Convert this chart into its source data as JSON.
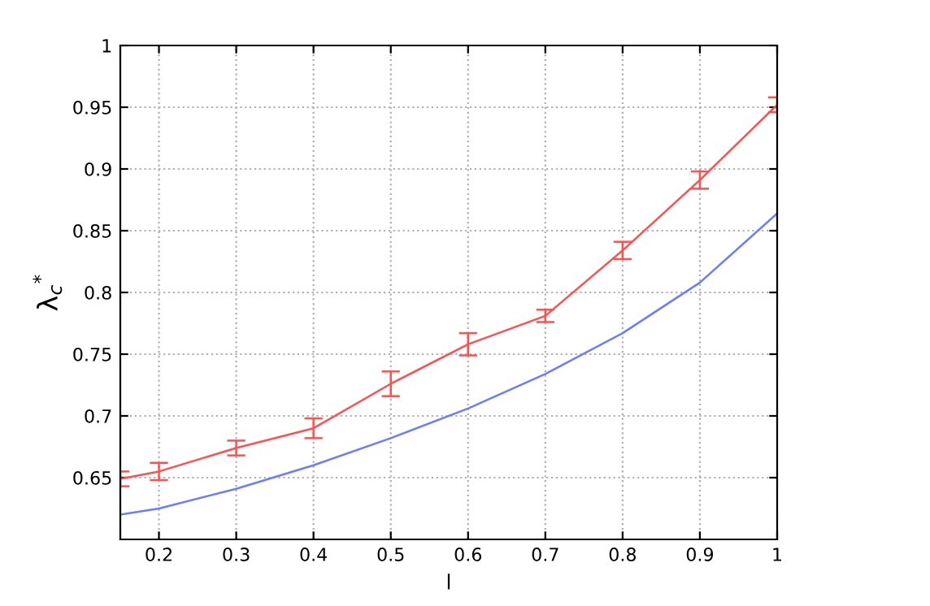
{
  "chart_data": {
    "type": "line",
    "xlabel": "l",
    "ylabel": "λ$_{c}$$^{*}$",
    "x": [
      0.15,
      0.2,
      0.3,
      0.4,
      0.5,
      0.6,
      0.7,
      0.8,
      0.9,
      1.0
    ],
    "series": [
      {
        "color": "#ff5050",
        "values": [
          0.649,
          0.655,
          0.674,
          0.69,
          0.726,
          0.758,
          0.781,
          0.834,
          0.891,
          0.952
        ],
        "errors": [
          0.006,
          0.007,
          0.006,
          0.008,
          0.01,
          0.009,
          0.005,
          0.007,
          0.007,
          0.006
        ]
      },
      {
        "color": "#6a7cff",
        "values": [
          0.62,
          0.625,
          0.641,
          0.66,
          0.682,
          0.706,
          0.734,
          0.767,
          0.808,
          0.864
        ]
      }
    ],
    "xlim": [
      0.15,
      1
    ],
    "ylim": [
      0.6,
      1
    ],
    "xticks": [
      0.2,
      0.3,
      0.4,
      0.5,
      0.6,
      0.7,
      0.8,
      0.9,
      1
    ],
    "yticks": [
      0.65,
      0.7,
      0.75,
      0.8,
      0.85,
      0.9,
      0.95,
      1
    ],
    "grid": true,
    "line_style": "solid"
  }
}
